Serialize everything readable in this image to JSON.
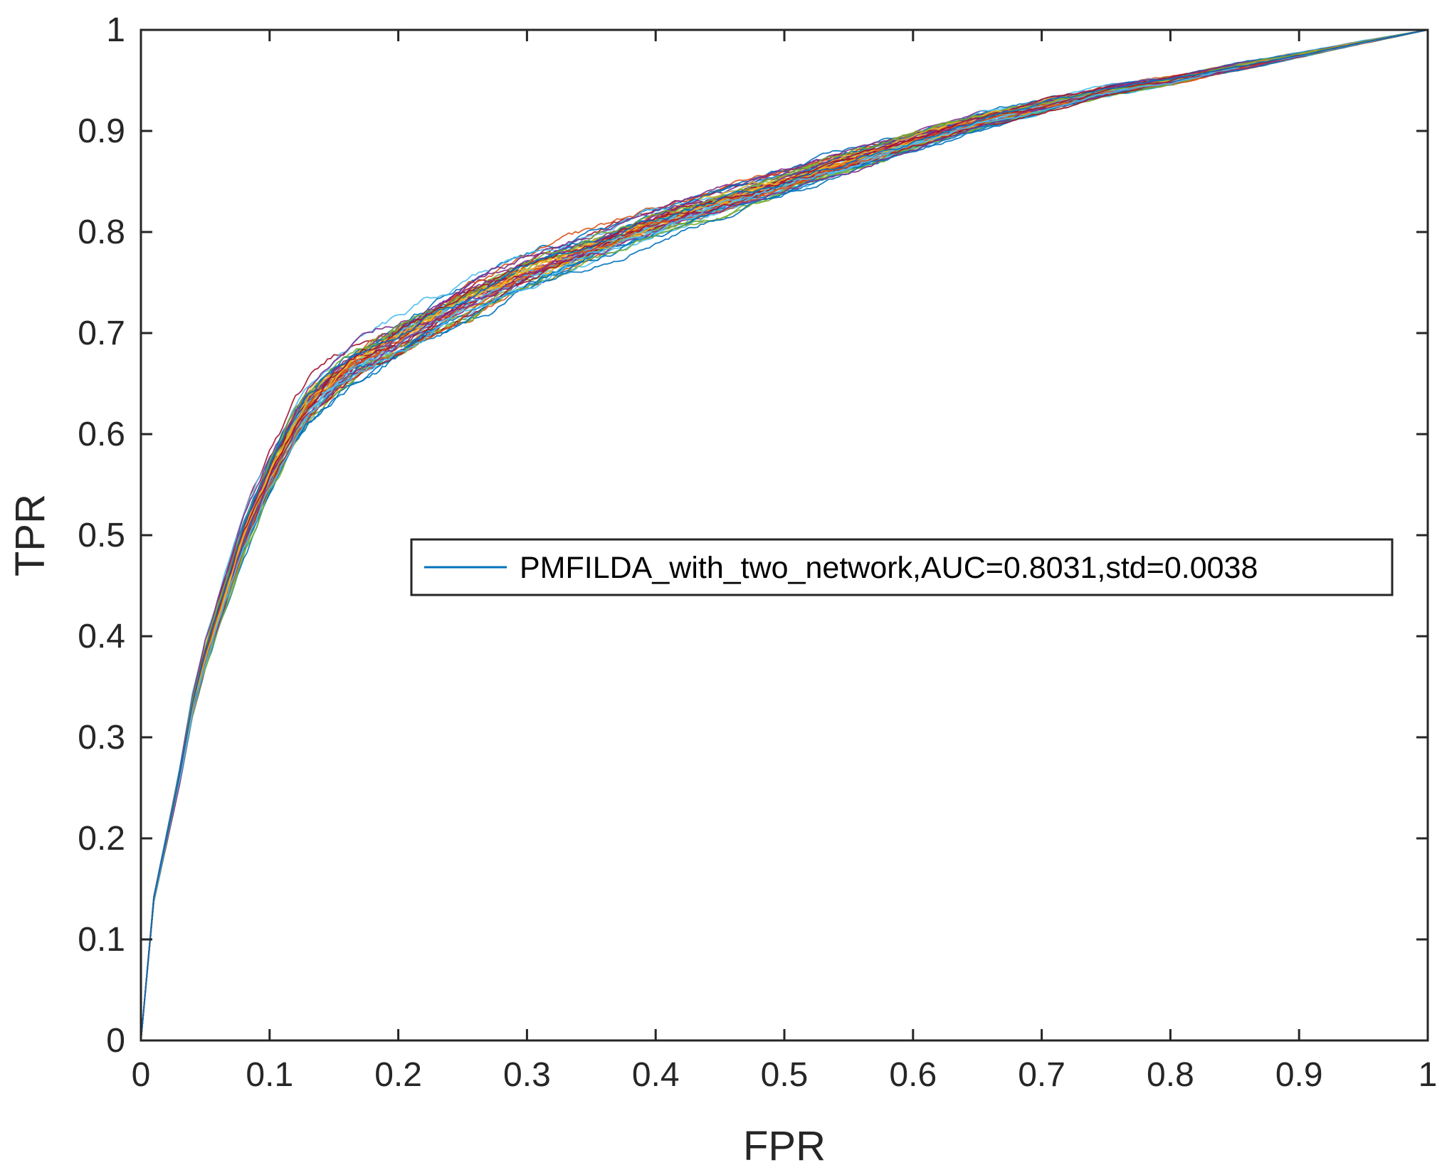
{
  "chart_data": {
    "type": "line",
    "title": "",
    "xlabel": "FPR",
    "ylabel": "TPR",
    "xlim": [
      0,
      1
    ],
    "ylim": [
      0,
      1
    ],
    "grid": false,
    "box": true,
    "x_ticks": [
      "0",
      "0.1",
      "0.2",
      "0.3",
      "0.4",
      "0.5",
      "0.6",
      "0.7",
      "0.8",
      "0.9",
      "1"
    ],
    "y_ticks": [
      "0",
      "0.1",
      "0.2",
      "0.3",
      "0.4",
      "0.5",
      "0.6",
      "0.7",
      "0.8",
      "0.9",
      "1"
    ],
    "legend": {
      "placement": "center-right",
      "entries": [
        {
          "label": "PMFILDA_with_two_network,AUC=0.8031,std=0.0038",
          "color": "#0072BD"
        }
      ]
    },
    "summary": {
      "auc": 0.8031,
      "std": 0.0038
    },
    "mean_curve": {
      "x": [
        0,
        0.01,
        0.02,
        0.03,
        0.04,
        0.05,
        0.06,
        0.07,
        0.08,
        0.09,
        0.1,
        0.11,
        0.12,
        0.13,
        0.15,
        0.17,
        0.2,
        0.25,
        0.3,
        0.35,
        0.4,
        0.45,
        0.5,
        0.55,
        0.6,
        0.65,
        0.7,
        0.75,
        0.8,
        0.85,
        0.9,
        0.95,
        1.0
      ],
      "y": [
        0,
        0.14,
        0.2,
        0.26,
        0.33,
        0.38,
        0.42,
        0.46,
        0.5,
        0.53,
        0.56,
        0.585,
        0.61,
        0.63,
        0.655,
        0.675,
        0.695,
        0.73,
        0.76,
        0.785,
        0.81,
        0.83,
        0.85,
        0.87,
        0.89,
        0.91,
        0.925,
        0.94,
        0.95,
        0.963,
        0.975,
        0.988,
        1.0
      ]
    },
    "series_colors": [
      "#0072BD",
      "#D95319",
      "#EDB120",
      "#7E2F8E",
      "#77AC30",
      "#4DBEEE",
      "#A2142F"
    ],
    "series_count": 50
  }
}
